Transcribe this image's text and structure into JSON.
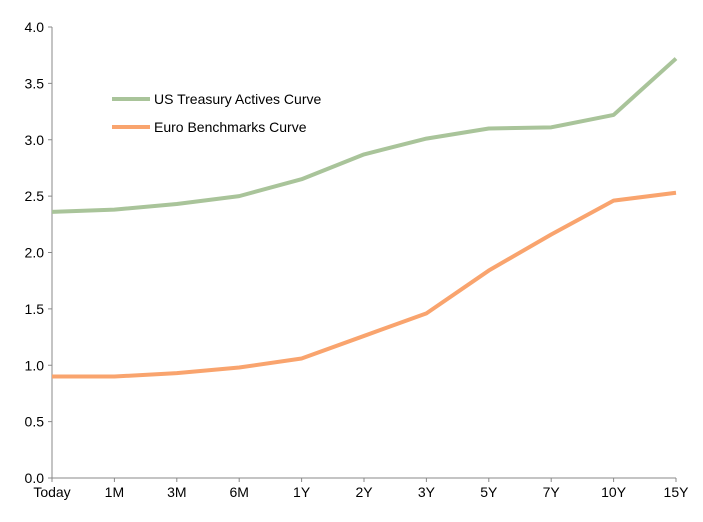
{
  "chart_data": {
    "type": "line",
    "title": "",
    "xlabel": "",
    "ylabel": "",
    "categories": [
      "Today",
      "1M",
      "3M",
      "6M",
      "1Y",
      "2Y",
      "3Y",
      "5Y",
      "7Y",
      "10Y",
      "15Y"
    ],
    "ylim": [
      0,
      4.0
    ],
    "yticks": [
      "0.0",
      "0.5",
      "1.0",
      "1.5",
      "2.0",
      "2.5",
      "3.0",
      "3.5",
      "4.0"
    ],
    "grid": false,
    "legend_position": "top-left",
    "series": [
      {
        "name": "US Treasury Actives Curve",
        "color": "#a9c49a",
        "values": [
          2.36,
          2.38,
          2.43,
          2.5,
          2.65,
          2.87,
          3.01,
          3.1,
          3.11,
          3.22,
          3.72
        ]
      },
      {
        "name": "Euro Benchmarks Curve",
        "color": "#f9a46e",
        "values": [
          0.9,
          0.9,
          0.93,
          0.98,
          1.06,
          1.26,
          1.46,
          1.84,
          2.16,
          2.46,
          2.53
        ]
      }
    ]
  }
}
